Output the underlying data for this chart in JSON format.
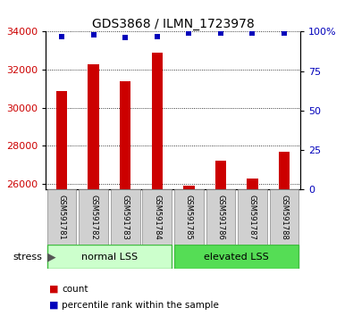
{
  "title": "GDS3868 / ILMN_1723978",
  "samples": [
    "GSM591781",
    "GSM591782",
    "GSM591783",
    "GSM591784",
    "GSM591785",
    "GSM591786",
    "GSM591787",
    "GSM591788"
  ],
  "counts": [
    30900,
    32300,
    31400,
    32900,
    25900,
    27200,
    26300,
    27700
  ],
  "percentile_ranks": [
    97,
    98,
    96,
    97,
    99,
    99,
    99,
    99
  ],
  "ylim_left": [
    25700,
    34000
  ],
  "ylim_right": [
    0,
    100
  ],
  "yticks_left": [
    26000,
    28000,
    30000,
    32000,
    34000
  ],
  "yticks_right": [
    0,
    25,
    50,
    75,
    100
  ],
  "bar_color": "#cc0000",
  "dot_color": "#0000bb",
  "group1_label": "normal LSS",
  "group2_label": "elevated LSS",
  "stress_label": "stress",
  "legend_count": "count",
  "legend_pct": "percentile rank within the sample",
  "color_light_green": "#ccffcc",
  "color_dark_green": "#55dd55",
  "color_gray_box": "#d0d0d0",
  "tick_label_color_left": "#cc0000",
  "tick_label_color_right": "#0000bb",
  "title_fontsize": 10,
  "tick_fontsize": 8,
  "bar_bottom": 25700,
  "bar_width": 0.35
}
